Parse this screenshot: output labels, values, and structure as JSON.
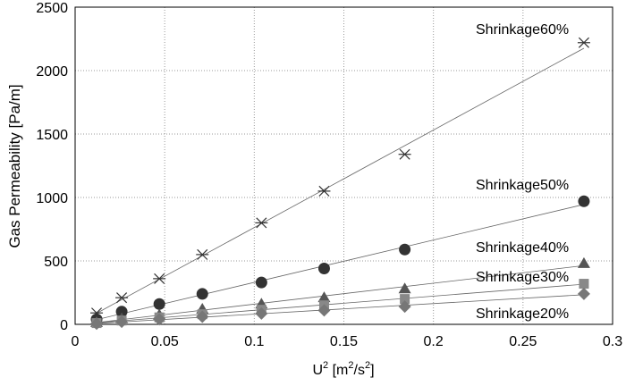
{
  "chart_data": {
    "type": "scatter",
    "title": "",
    "xlabel_base": "U",
    "xlabel_sup1": "2",
    "xlabel_mid": " [m",
    "xlabel_sup2": "2",
    "xlabel_mid2": "/s",
    "xlabel_sup3": "2",
    "xlabel_end": "]",
    "ylabel": "Gas Permeability [Pa/m]",
    "xlim": [
      0,
      0.3
    ],
    "ylim": [
      0,
      2500
    ],
    "xticks": [
      0,
      0.05,
      0.1,
      0.15,
      0.2,
      0.25,
      0.3
    ],
    "xtick_labels": [
      "0",
      "0.05",
      "0.1",
      "0.15",
      "0.2",
      "0.25",
      "0.3"
    ],
    "yticks": [
      0,
      500,
      1000,
      1500,
      2000,
      2500
    ],
    "ytick_labels": [
      "0",
      "500",
      "1000",
      "1500",
      "2000",
      "2500"
    ],
    "grid": true,
    "x": [
      0.012,
      0.026,
      0.047,
      0.071,
      0.104,
      0.139,
      0.184,
      0.284
    ],
    "series": [
      {
        "name": "Shrinkage60%",
        "marker": "asterisk",
        "color": "#333333",
        "values": [
          90,
          210,
          360,
          550,
          800,
          1050,
          1340,
          2220
        ]
      },
      {
        "name": "Shrinkage50%",
        "marker": "circle",
        "color": "#333333",
        "values": [
          40,
          100,
          160,
          240,
          330,
          440,
          590,
          970
        ]
      },
      {
        "name": "Shrinkage40%",
        "marker": "triangle",
        "color": "#555555",
        "values": [
          15,
          45,
          75,
          120,
          160,
          210,
          280,
          480
        ]
      },
      {
        "name": "Shrinkage30%",
        "marker": "square",
        "color": "#888888",
        "values": [
          10,
          30,
          55,
          80,
          115,
          150,
          200,
          320
        ]
      },
      {
        "name": "Shrinkage20%",
        "marker": "diamond",
        "color": "#777777",
        "values": [
          5,
          20,
          40,
          60,
          85,
          110,
          140,
          240
        ]
      }
    ]
  }
}
